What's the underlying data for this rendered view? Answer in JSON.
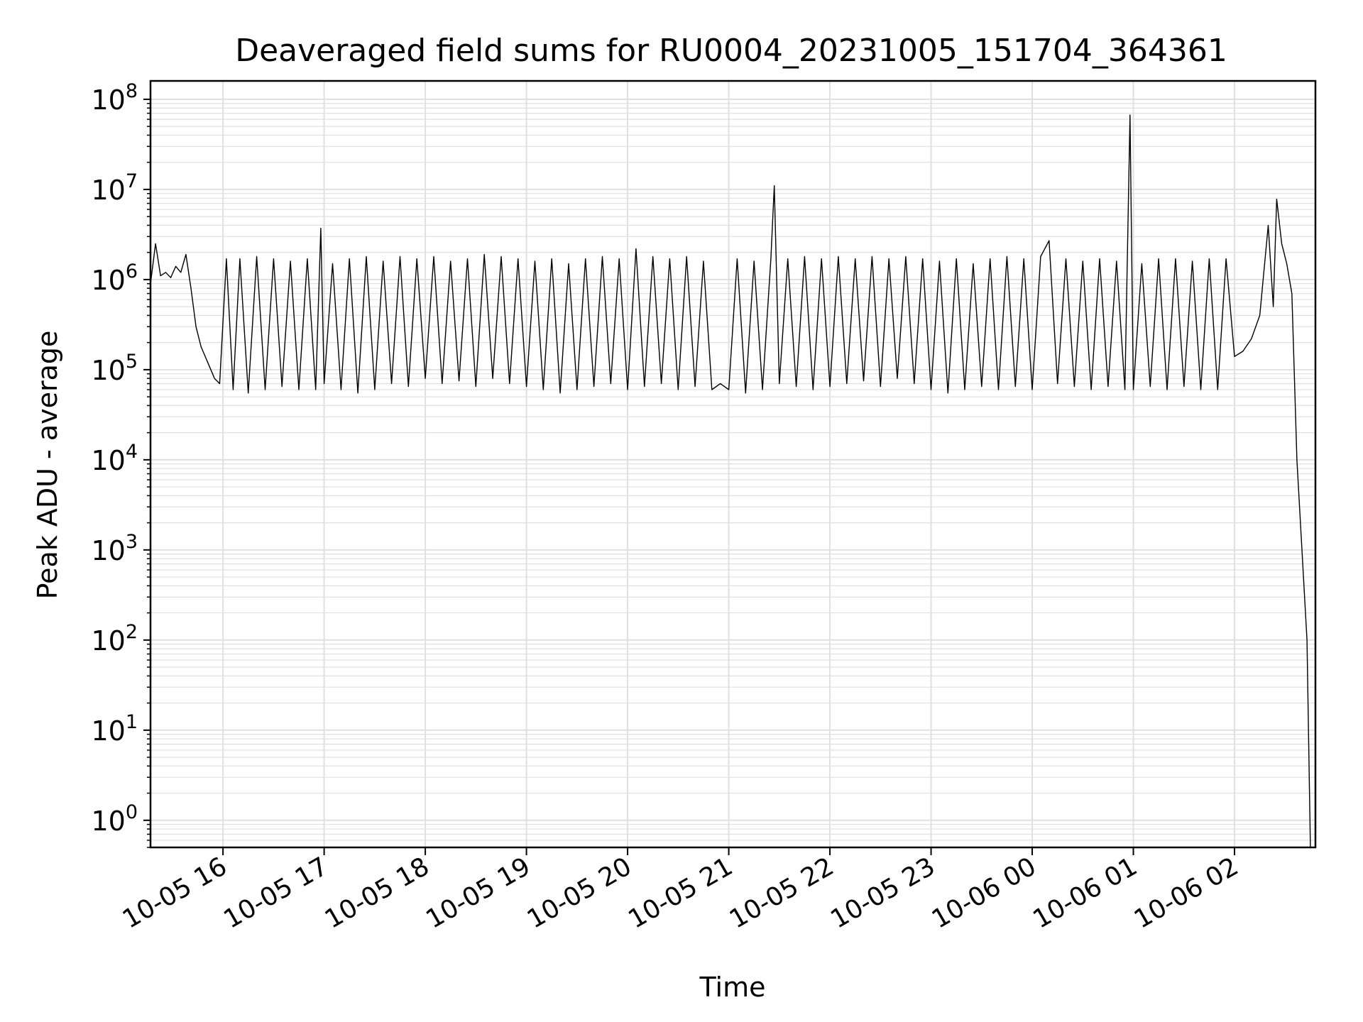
{
  "chart_data": {
    "type": "line",
    "title": "Deaveraged field sums for RU0004_20231005_151704_364361",
    "xlabel": "Time",
    "ylabel": "Peak ADU - average",
    "y_scale": "log",
    "ylim": [
      0.5,
      160000000
    ],
    "xlim": [
      "2023-10-05 15:17",
      "2023-10-06 02:48"
    ],
    "grid": true,
    "line_color": "#000000",
    "grid_color": "#e0e0e0",
    "x_ticks": [
      {
        "t": "2023-10-05 16:00",
        "label": "10-05 16"
      },
      {
        "t": "2023-10-05 17:00",
        "label": "10-05 17"
      },
      {
        "t": "2023-10-05 18:00",
        "label": "10-05 18"
      },
      {
        "t": "2023-10-05 19:00",
        "label": "10-05 19"
      },
      {
        "t": "2023-10-05 20:00",
        "label": "10-05 20"
      },
      {
        "t": "2023-10-05 21:00",
        "label": "10-05 21"
      },
      {
        "t": "2023-10-05 22:00",
        "label": "10-05 22"
      },
      {
        "t": "2023-10-05 23:00",
        "label": "10-05 23"
      },
      {
        "t": "2023-10-06 00:00",
        "label": "10-06 00"
      },
      {
        "t": "2023-10-06 01:00",
        "label": "10-06 01"
      },
      {
        "t": "2023-10-06 02:00",
        "label": "10-06 02"
      }
    ],
    "y_ticks": [
      {
        "v": 1,
        "base": "10",
        "exp": "0"
      },
      {
        "v": 10,
        "base": "10",
        "exp": "1"
      },
      {
        "v": 100,
        "base": "10",
        "exp": "2"
      },
      {
        "v": 1000,
        "base": "10",
        "exp": "3"
      },
      {
        "v": 10000,
        "base": "10",
        "exp": "4"
      },
      {
        "v": 100000,
        "base": "10",
        "exp": "5"
      },
      {
        "v": 1000000,
        "base": "10",
        "exp": "6"
      },
      {
        "v": 10000000,
        "base": "10",
        "exp": "7"
      },
      {
        "v": 100000000,
        "base": "10",
        "exp": "8"
      }
    ],
    "series": [
      {
        "x": [
          "2023-10-05 15:17",
          "2023-10-05 15:20",
          "2023-10-05 15:23",
          "2023-10-05 15:26",
          "2023-10-05 15:29",
          "2023-10-05 15:32",
          "2023-10-05 15:35",
          "2023-10-05 15:38",
          "2023-10-05 15:41",
          "2023-10-05 15:44",
          "2023-10-05 15:47",
          "2023-10-05 15:51",
          "2023-10-05 15:55",
          "2023-10-05 15:58",
          "2023-10-05 16:02",
          "2023-10-05 16:06",
          "2023-10-05 16:10",
          "2023-10-05 16:15",
          "2023-10-05 16:20",
          "2023-10-05 16:25",
          "2023-10-05 16:30",
          "2023-10-05 16:35",
          "2023-10-05 16:40",
          "2023-10-05 16:45",
          "2023-10-05 16:50",
          "2023-10-05 16:55",
          "2023-10-05 16:58",
          "2023-10-05 17:00",
          "2023-10-05 17:05",
          "2023-10-05 17:10",
          "2023-10-05 17:15",
          "2023-10-05 17:20",
          "2023-10-05 17:25",
          "2023-10-05 17:30",
          "2023-10-05 17:35",
          "2023-10-05 17:40",
          "2023-10-05 17:45",
          "2023-10-05 17:50",
          "2023-10-05 17:55",
          "2023-10-05 18:00",
          "2023-10-05 18:05",
          "2023-10-05 18:10",
          "2023-10-05 18:15",
          "2023-10-05 18:20",
          "2023-10-05 18:25",
          "2023-10-05 18:30",
          "2023-10-05 18:35",
          "2023-10-05 18:40",
          "2023-10-05 18:45",
          "2023-10-05 18:50",
          "2023-10-05 18:55",
          "2023-10-05 19:00",
          "2023-10-05 19:05",
          "2023-10-05 19:10",
          "2023-10-05 19:15",
          "2023-10-05 19:20",
          "2023-10-05 19:25",
          "2023-10-05 19:30",
          "2023-10-05 19:35",
          "2023-10-05 19:40",
          "2023-10-05 19:45",
          "2023-10-05 19:50",
          "2023-10-05 19:55",
          "2023-10-05 20:00",
          "2023-10-05 20:05",
          "2023-10-05 20:10",
          "2023-10-05 20:15",
          "2023-10-05 20:20",
          "2023-10-05 20:25",
          "2023-10-05 20:30",
          "2023-10-05 20:35",
          "2023-10-05 20:40",
          "2023-10-05 20:45",
          "2023-10-05 20:50",
          "2023-10-05 20:55",
          "2023-10-05 21:00",
          "2023-10-05 21:05",
          "2023-10-05 21:10",
          "2023-10-05 21:15",
          "2023-10-05 21:20",
          "2023-10-05 21:25",
          "2023-10-05 21:27",
          "2023-10-05 21:30",
          "2023-10-05 21:35",
          "2023-10-05 21:40",
          "2023-10-05 21:45",
          "2023-10-05 21:50",
          "2023-10-05 21:55",
          "2023-10-05 22:00",
          "2023-10-05 22:05",
          "2023-10-05 22:10",
          "2023-10-05 22:15",
          "2023-10-05 22:20",
          "2023-10-05 22:25",
          "2023-10-05 22:30",
          "2023-10-05 22:35",
          "2023-10-05 22:40",
          "2023-10-05 22:45",
          "2023-10-05 22:50",
          "2023-10-05 22:55",
          "2023-10-05 23:00",
          "2023-10-05 23:05",
          "2023-10-05 23:10",
          "2023-10-05 23:15",
          "2023-10-05 23:20",
          "2023-10-05 23:25",
          "2023-10-05 23:30",
          "2023-10-05 23:35",
          "2023-10-05 23:40",
          "2023-10-05 23:45",
          "2023-10-05 23:50",
          "2023-10-05 23:55",
          "2023-10-06 00:00",
          "2023-10-06 00:05",
          "2023-10-06 00:10",
          "2023-10-06 00:15",
          "2023-10-06 00:20",
          "2023-10-06 00:25",
          "2023-10-06 00:30",
          "2023-10-06 00:35",
          "2023-10-06 00:40",
          "2023-10-06 00:45",
          "2023-10-06 00:50",
          "2023-10-06 00:55",
          "2023-10-06 00:58",
          "2023-10-06 01:00",
          "2023-10-06 01:05",
          "2023-10-06 01:10",
          "2023-10-06 01:15",
          "2023-10-06 01:20",
          "2023-10-06 01:25",
          "2023-10-06 01:30",
          "2023-10-06 01:35",
          "2023-10-06 01:40",
          "2023-10-06 01:45",
          "2023-10-06 01:50",
          "2023-10-06 01:55",
          "2023-10-06 02:00",
          "2023-10-06 02:05",
          "2023-10-06 02:10",
          "2023-10-06 02:15",
          "2023-10-06 02:20",
          "2023-10-06 02:23",
          "2023-10-06 02:25",
          "2023-10-06 02:28",
          "2023-10-06 02:31",
          "2023-10-06 02:34",
          "2023-10-06 02:37",
          "2023-10-06 02:40",
          "2023-10-06 02:43",
          "2023-10-06 02:45"
        ],
        "y": [
          900000,
          2500000,
          1100000,
          1200000,
          1050000,
          1400000,
          1200000,
          1900000,
          800000,
          300000,
          180000,
          120000,
          80000,
          70000,
          1700000,
          60000,
          1700000,
          55000,
          1800000,
          60000,
          1700000,
          65000,
          1600000,
          60000,
          1700000,
          60000,
          3700000,
          70000,
          1500000,
          60000,
          1700000,
          55000,
          1800000,
          60000,
          1600000,
          70000,
          1800000,
          65000,
          1700000,
          80000,
          1800000,
          70000,
          1600000,
          75000,
          1700000,
          65000,
          1900000,
          80000,
          1800000,
          70000,
          1700000,
          65000,
          1600000,
          60000,
          1700000,
          55000,
          1500000,
          60000,
          1700000,
          65000,
          1800000,
          70000,
          1700000,
          60000,
          2200000,
          65000,
          1800000,
          70000,
          1700000,
          60000,
          1800000,
          65000,
          1600000,
          60000,
          70000,
          60000,
          1700000,
          55000,
          1600000,
          60000,
          1700000,
          11000000,
          70000,
          1700000,
          65000,
          1800000,
          60000,
          1700000,
          65000,
          1800000,
          70000,
          1700000,
          75000,
          1800000,
          65000,
          1700000,
          80000,
          1800000,
          70000,
          1700000,
          60000,
          1600000,
          55000,
          1700000,
          60000,
          1500000,
          65000,
          1700000,
          60000,
          1800000,
          65000,
          1700000,
          60000,
          1800000,
          2700000,
          70000,
          1700000,
          65000,
          1600000,
          60000,
          1700000,
          65000,
          1600000,
          60000,
          67000000,
          60000,
          1500000,
          65000,
          1700000,
          60000,
          1700000,
          65000,
          1600000,
          60000,
          1700000,
          60000,
          1700000,
          140000,
          160000,
          220000,
          400000,
          4000000,
          500000,
          7800000,
          2500000,
          1500000,
          700000,
          10000,
          1000,
          100,
          0.5
        ]
      }
    ]
  }
}
